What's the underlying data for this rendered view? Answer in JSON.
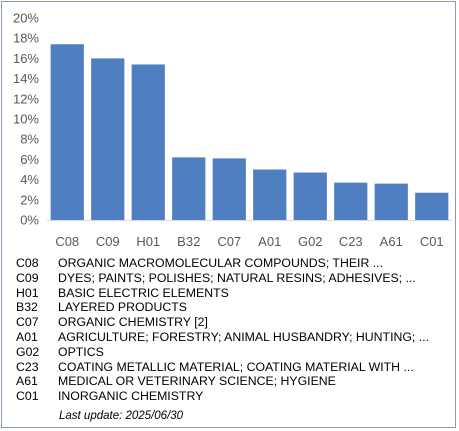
{
  "chart_data": {
    "type": "bar",
    "categories": [
      "C08",
      "C09",
      "H01",
      "B32",
      "C07",
      "A01",
      "G02",
      "C23",
      "A61",
      "C01"
    ],
    "values": [
      17.4,
      16.0,
      15.4,
      6.2,
      6.1,
      5.0,
      4.7,
      3.7,
      3.6,
      2.7
    ],
    "y_ticks": [
      "0%",
      "2%",
      "4%",
      "6%",
      "8%",
      "10%",
      "12%",
      "14%",
      "16%",
      "18%",
      "20%"
    ],
    "ylim": [
      0,
      20
    ],
    "bar_color": "#4f7fc1",
    "grid": false
  },
  "legend": [
    {
      "code": "C08",
      "desc": "ORGANIC MACROMOLECULAR COMPOUNDS; THEIR ..."
    },
    {
      "code": "C09",
      "desc": "DYES; PAINTS; POLISHES; NATURAL RESINS; ADHESIVES; ..."
    },
    {
      "code": "H01",
      "desc": "BASIC ELECTRIC ELEMENTS"
    },
    {
      "code": "B32",
      "desc": "LAYERED PRODUCTS"
    },
    {
      "code": "C07",
      "desc": "ORGANIC CHEMISTRY [2]"
    },
    {
      "code": "A01",
      "desc": "AGRICULTURE; FORESTRY; ANIMAL HUSBANDRY; HUNTING; ..."
    },
    {
      "code": "G02",
      "desc": "OPTICS"
    },
    {
      "code": "C23",
      "desc": "COATING METALLIC MATERIAL; COATING MATERIAL WITH ..."
    },
    {
      "code": "A61",
      "desc": "MEDICAL OR VETERINARY SCIENCE; HYGIENE"
    },
    {
      "code": "C01",
      "desc": "INORGANIC CHEMISTRY"
    }
  ],
  "last_update": "Last update:  2025/06/30"
}
